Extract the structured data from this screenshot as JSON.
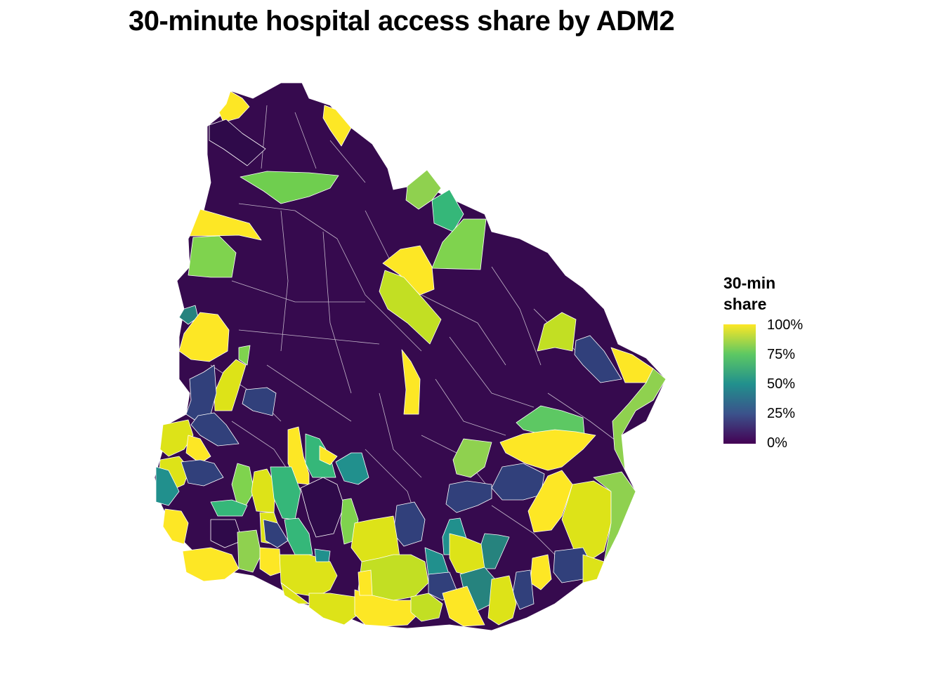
{
  "title": "30-minute hospital access share by ADM2",
  "legend": {
    "title_line1": "30-min",
    "title_line2": "share",
    "ticks": [
      {
        "label": "100%",
        "value": 1.0
      },
      {
        "label": "75%",
        "value": 0.75
      },
      {
        "label": "50%",
        "value": 0.5
      },
      {
        "label": "25%",
        "value": 0.25
      },
      {
        "label": "0%",
        "value": 0.0
      }
    ]
  },
  "colors": {
    "0": "#440154",
    "dark": "#2f0a4a",
    "25": "#3b528b",
    "navy": "#31407b",
    "50": "#21908d",
    "teal": "#26837e",
    "65": "#35b779",
    "75": "#5dc863",
    "85": "#8fd14f",
    "90": "#c2df23",
    "95": "#dde318",
    "100": "#fde725"
  }
}
